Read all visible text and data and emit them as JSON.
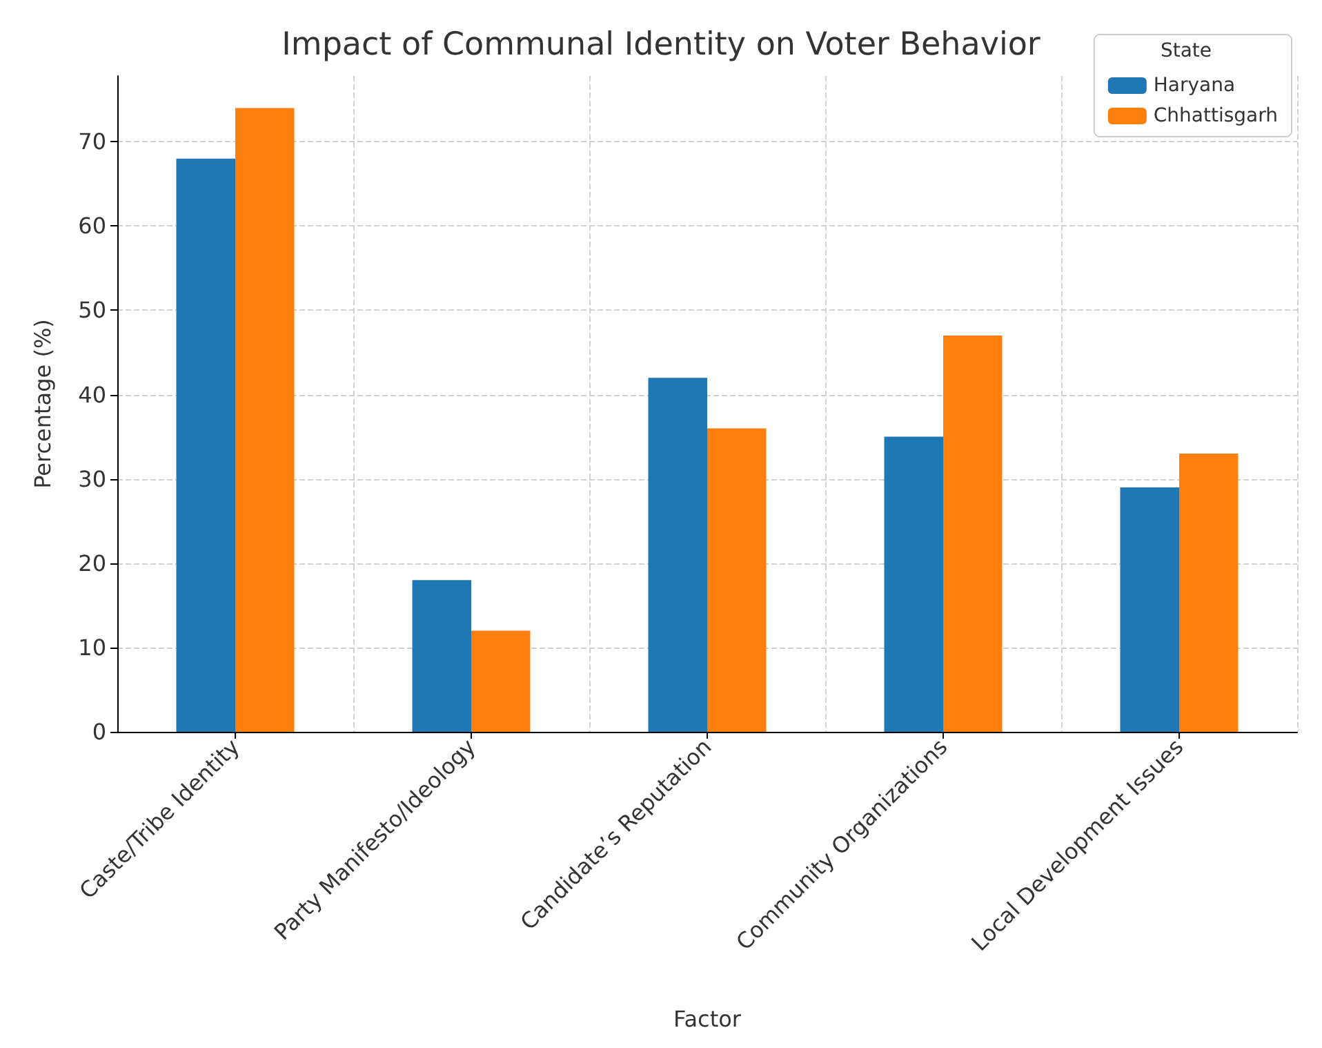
{
  "chart_data": {
    "type": "bar",
    "title": "Impact of Communal Identity on Voter Behavior",
    "xlabel": "Factor",
    "ylabel": "Percentage (%)",
    "legend_title": "State",
    "categories": [
      "Caste/Tribe Identity",
      "Party Manifesto/Ideology",
      "Candidate’s Reputation",
      "Community Organizations",
      "Local Development Issues"
    ],
    "series": [
      {
        "name": "Haryana",
        "color": "#1f77b4",
        "values": [
          68,
          18,
          42,
          35,
          29
        ]
      },
      {
        "name": "Chhattisgarh",
        "color": "#ff7f0e",
        "values": [
          74,
          12,
          36,
          47,
          33
        ]
      }
    ],
    "ylim": [
      0,
      77.8
    ],
    "yticks": [
      0,
      10,
      20,
      30,
      40,
      50,
      60,
      70
    ],
    "grid": true,
    "legend": "top right"
  }
}
